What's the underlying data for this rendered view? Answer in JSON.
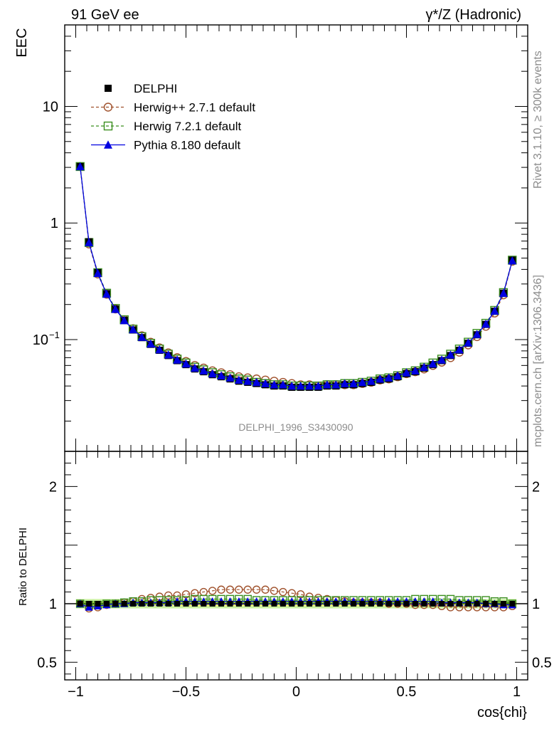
{
  "header": {
    "left": "91 GeV ee",
    "right": "γ*/Z (Hadronic)"
  },
  "side_labels": {
    "rivet": "Rivet 3.1.10, ≥ 300k events",
    "mcplots": "mcplots.cern.ch [arXiv:1306.3436]"
  },
  "watermark": "DELPHI_1996_S3430090",
  "colors": {
    "data": "#000000",
    "herwigpp": "#a0522d",
    "herwig7": "#3b8f1f",
    "pythia": "#0000e0",
    "band_inner": "#f3f36a",
    "band_outer": "#c9f0a0"
  },
  "chart_data": [
    {
      "type": "scatter",
      "panel": "main",
      "ylabel": "EEC",
      "xlabel": "",
      "yscale": "log",
      "xlim": [
        -1.05,
        1.05
      ],
      "ylim": [
        0.011,
        50
      ],
      "yticks": [
        {
          "value": 10,
          "label": "10"
        },
        {
          "value": 1,
          "label": "1"
        },
        {
          "value": 0.1,
          "label": "10",
          "sup": "−1"
        }
      ],
      "legend": {
        "placement": "top-left",
        "entries": [
          {
            "key": "data",
            "label": "DELPHI"
          },
          {
            "key": "herwigpp",
            "label": "Herwig++ 2.7.1 default"
          },
          {
            "key": "herwig7",
            "label": "Herwig 7.2.1 default"
          },
          {
            "key": "pythia",
            "label": "Pythia 8.180 default"
          }
        ]
      },
      "x": [
        -0.98,
        -0.94,
        -0.9,
        -0.86,
        -0.82,
        -0.78,
        -0.74,
        -0.7,
        -0.66,
        -0.62,
        -0.58,
        -0.54,
        -0.5,
        -0.46,
        -0.42,
        -0.38,
        -0.34,
        -0.3,
        -0.26,
        -0.22,
        -0.18,
        -0.14,
        -0.1,
        -0.06,
        -0.02,
        0.02,
        0.06,
        0.1,
        0.14,
        0.18,
        0.22,
        0.26,
        0.3,
        0.34,
        0.38,
        0.42,
        0.46,
        0.5,
        0.54,
        0.58,
        0.62,
        0.66,
        0.7,
        0.74,
        0.78,
        0.82,
        0.86,
        0.9,
        0.94,
        0.98
      ],
      "series": [
        {
          "key": "data",
          "name": "DELPHI",
          "values": [
            3.05,
            0.69,
            0.375,
            0.248,
            0.183,
            0.146,
            0.121,
            0.104,
            0.091,
            0.081,
            0.073,
            0.066,
            0.061,
            0.056,
            0.053,
            0.05,
            0.048,
            0.046,
            0.044,
            0.043,
            0.042,
            0.041,
            0.04,
            0.04,
            0.039,
            0.039,
            0.039,
            0.039,
            0.04,
            0.04,
            0.041,
            0.041,
            0.042,
            0.043,
            0.045,
            0.046,
            0.048,
            0.051,
            0.053,
            0.057,
            0.061,
            0.066,
            0.073,
            0.081,
            0.093,
            0.11,
            0.135,
            0.175,
            0.25,
            0.48
          ]
        },
        {
          "key": "herwigpp",
          "name": "Herwig++ 2.7.1 default",
          "values": [
            3.05,
            0.66,
            0.365,
            0.245,
            0.183,
            0.148,
            0.124,
            0.108,
            0.095,
            0.085,
            0.077,
            0.07,
            0.065,
            0.06,
            0.057,
            0.054,
            0.052,
            0.05,
            0.048,
            0.047,
            0.046,
            0.045,
            0.044,
            0.043,
            0.042,
            0.041,
            0.041,
            0.04,
            0.041,
            0.041,
            0.041,
            0.041,
            0.042,
            0.043,
            0.045,
            0.046,
            0.048,
            0.051,
            0.053,
            0.056,
            0.06,
            0.064,
            0.07,
            0.078,
            0.09,
            0.106,
            0.13,
            0.169,
            0.242,
            0.47
          ]
        },
        {
          "key": "herwig7",
          "name": "Herwig 7.2.1 default",
          "values": [
            3.05,
            0.68,
            0.375,
            0.25,
            0.185,
            0.148,
            0.123,
            0.106,
            0.093,
            0.083,
            0.075,
            0.068,
            0.063,
            0.058,
            0.055,
            0.052,
            0.05,
            0.048,
            0.046,
            0.045,
            0.043,
            0.042,
            0.041,
            0.041,
            0.04,
            0.04,
            0.04,
            0.04,
            0.041,
            0.041,
            0.042,
            0.042,
            0.043,
            0.044,
            0.046,
            0.047,
            0.049,
            0.052,
            0.054,
            0.058,
            0.063,
            0.068,
            0.075,
            0.083,
            0.095,
            0.113,
            0.138,
            0.178,
            0.253,
            0.48
          ]
        },
        {
          "key": "pythia",
          "name": "Pythia 8.180 default",
          "values": [
            3.05,
            0.68,
            0.37,
            0.246,
            0.182,
            0.146,
            0.122,
            0.105,
            0.092,
            0.082,
            0.074,
            0.067,
            0.062,
            0.057,
            0.054,
            0.051,
            0.049,
            0.047,
            0.045,
            0.044,
            0.043,
            0.042,
            0.041,
            0.041,
            0.04,
            0.04,
            0.04,
            0.04,
            0.041,
            0.041,
            0.042,
            0.042,
            0.043,
            0.044,
            0.046,
            0.047,
            0.049,
            0.052,
            0.054,
            0.058,
            0.062,
            0.067,
            0.074,
            0.082,
            0.094,
            0.111,
            0.136,
            0.176,
            0.25,
            0.475
          ]
        }
      ]
    },
    {
      "type": "scatter",
      "panel": "ratio",
      "ylabel": "Ratio to DELPHI",
      "xlabel": "cos{chi}",
      "xlim": [
        -1.05,
        1.05
      ],
      "ylim": [
        0.35,
        2.3
      ],
      "yticks": [
        {
          "value": 2,
          "label": "2"
        },
        {
          "value": 1,
          "label": "1"
        },
        {
          "value": 0.5,
          "label": "0.5"
        }
      ],
      "xticks": [
        {
          "value": -1,
          "label": "−1"
        },
        {
          "value": -0.5,
          "label": "−0.5"
        },
        {
          "value": 0,
          "label": "0"
        },
        {
          "value": 0.5,
          "label": "0.5"
        },
        {
          "value": 1,
          "label": "1"
        }
      ],
      "band": {
        "inner": 0.02,
        "outer": 0.04
      },
      "x": [
        -0.98,
        -0.94,
        -0.9,
        -0.86,
        -0.82,
        -0.78,
        -0.74,
        -0.7,
        -0.66,
        -0.62,
        -0.58,
        -0.54,
        -0.5,
        -0.46,
        -0.42,
        -0.38,
        -0.34,
        -0.3,
        -0.26,
        -0.22,
        -0.18,
        -0.14,
        -0.1,
        -0.06,
        -0.02,
        0.02,
        0.06,
        0.1,
        0.14,
        0.18,
        0.22,
        0.26,
        0.3,
        0.34,
        0.38,
        0.42,
        0.46,
        0.5,
        0.54,
        0.58,
        0.62,
        0.66,
        0.7,
        0.74,
        0.78,
        0.82,
        0.86,
        0.9,
        0.94,
        0.98
      ],
      "series": [
        {
          "key": "herwigpp",
          "name": "Herwig++ 2.7.1 default",
          "values": [
            1.0,
            0.96,
            0.97,
            0.99,
            1.0,
            1.01,
            1.02,
            1.04,
            1.05,
            1.06,
            1.07,
            1.07,
            1.08,
            1.09,
            1.1,
            1.11,
            1.12,
            1.12,
            1.12,
            1.12,
            1.12,
            1.12,
            1.11,
            1.1,
            1.09,
            1.08,
            1.06,
            1.05,
            1.04,
            1.03,
            1.02,
            1.01,
            1.01,
            1.01,
            1.01,
            1.0,
            1.0,
            1.0,
            0.99,
            0.99,
            0.99,
            0.98,
            0.97,
            0.97,
            0.97,
            0.97,
            0.97,
            0.97,
            0.97,
            0.98
          ]
        },
        {
          "key": "herwig7",
          "name": "Herwig 7.2.1 default",
          "values": [
            1.0,
            0.99,
            0.99,
            1.0,
            1.0,
            1.01,
            1.02,
            1.02,
            1.03,
            1.03,
            1.03,
            1.03,
            1.03,
            1.04,
            1.04,
            1.04,
            1.04,
            1.04,
            1.04,
            1.04,
            1.03,
            1.03,
            1.03,
            1.03,
            1.03,
            1.03,
            1.03,
            1.03,
            1.03,
            1.03,
            1.03,
            1.03,
            1.03,
            1.03,
            1.03,
            1.03,
            1.03,
            1.03,
            1.04,
            1.04,
            1.04,
            1.04,
            1.04,
            1.03,
            1.03,
            1.03,
            1.03,
            1.02,
            1.02,
            1.0
          ]
        },
        {
          "key": "pythia",
          "name": "Pythia 8.180 default",
          "values": [
            1.0,
            0.97,
            0.98,
            0.99,
            1.0,
            1.0,
            1.01,
            1.01,
            1.01,
            1.01,
            1.01,
            1.02,
            1.02,
            1.02,
            1.02,
            1.02,
            1.02,
            1.02,
            1.02,
            1.02,
            1.02,
            1.02,
            1.02,
            1.02,
            1.02,
            1.02,
            1.02,
            1.02,
            1.02,
            1.02,
            1.02,
            1.02,
            1.02,
            1.02,
            1.02,
            1.02,
            1.02,
            1.02,
            1.02,
            1.02,
            1.02,
            1.01,
            1.01,
            1.01,
            1.01,
            1.01,
            1.0,
            1.0,
            0.99,
            0.99
          ]
        }
      ]
    }
  ]
}
